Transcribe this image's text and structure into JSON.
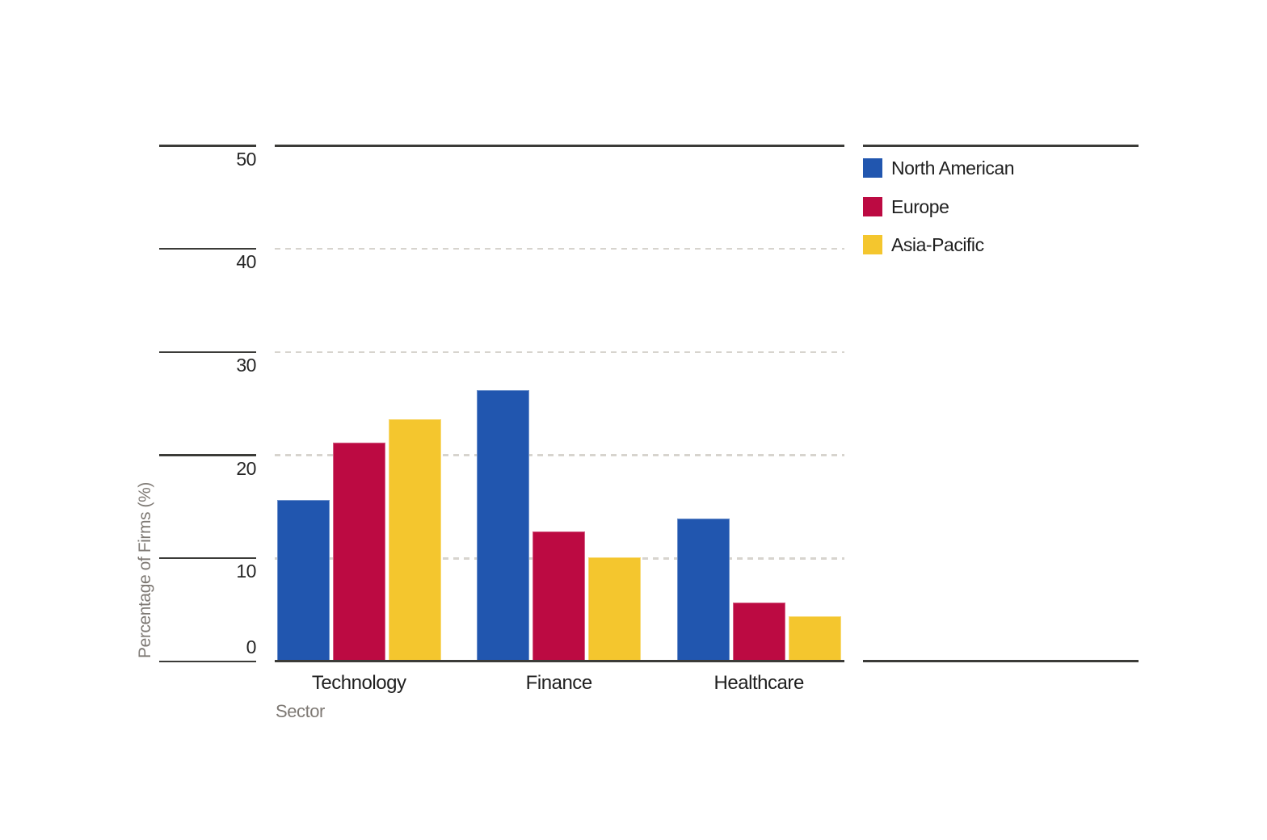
{
  "chart_data": {
    "type": "bar",
    "title": "",
    "categories": [
      "Technology",
      "Finance",
      "Healthcare"
    ],
    "series": [
      {
        "name": "North American",
        "color": "#2156AF",
        "values": [
          15.7,
          26.3,
          13.9
        ]
      },
      {
        "name": "Europe",
        "color": "#BC0A42",
        "values": [
          21.2,
          12.6,
          5.7
        ]
      },
      {
        "name": "Asia-Pacific",
        "color": "#F4C62E",
        "values": [
          23.5,
          10.1,
          4.4
        ]
      }
    ],
    "xlabel": "Sector",
    "ylabel": "Percentage of Firms (%)",
    "ylim": [
      0,
      50
    ],
    "yticks": [
      0,
      10,
      20,
      30,
      40,
      50
    ],
    "grid": "horizontal-dashed",
    "legend_position": "top-right"
  },
  "colors": {
    "axis_line": "#3B3B38",
    "gridline": "#D7D4CE",
    "tick_label": "#262626",
    "category_label": "#1F1F1F",
    "muted_label": "#7E7974",
    "background": "#FFFFFF"
  }
}
